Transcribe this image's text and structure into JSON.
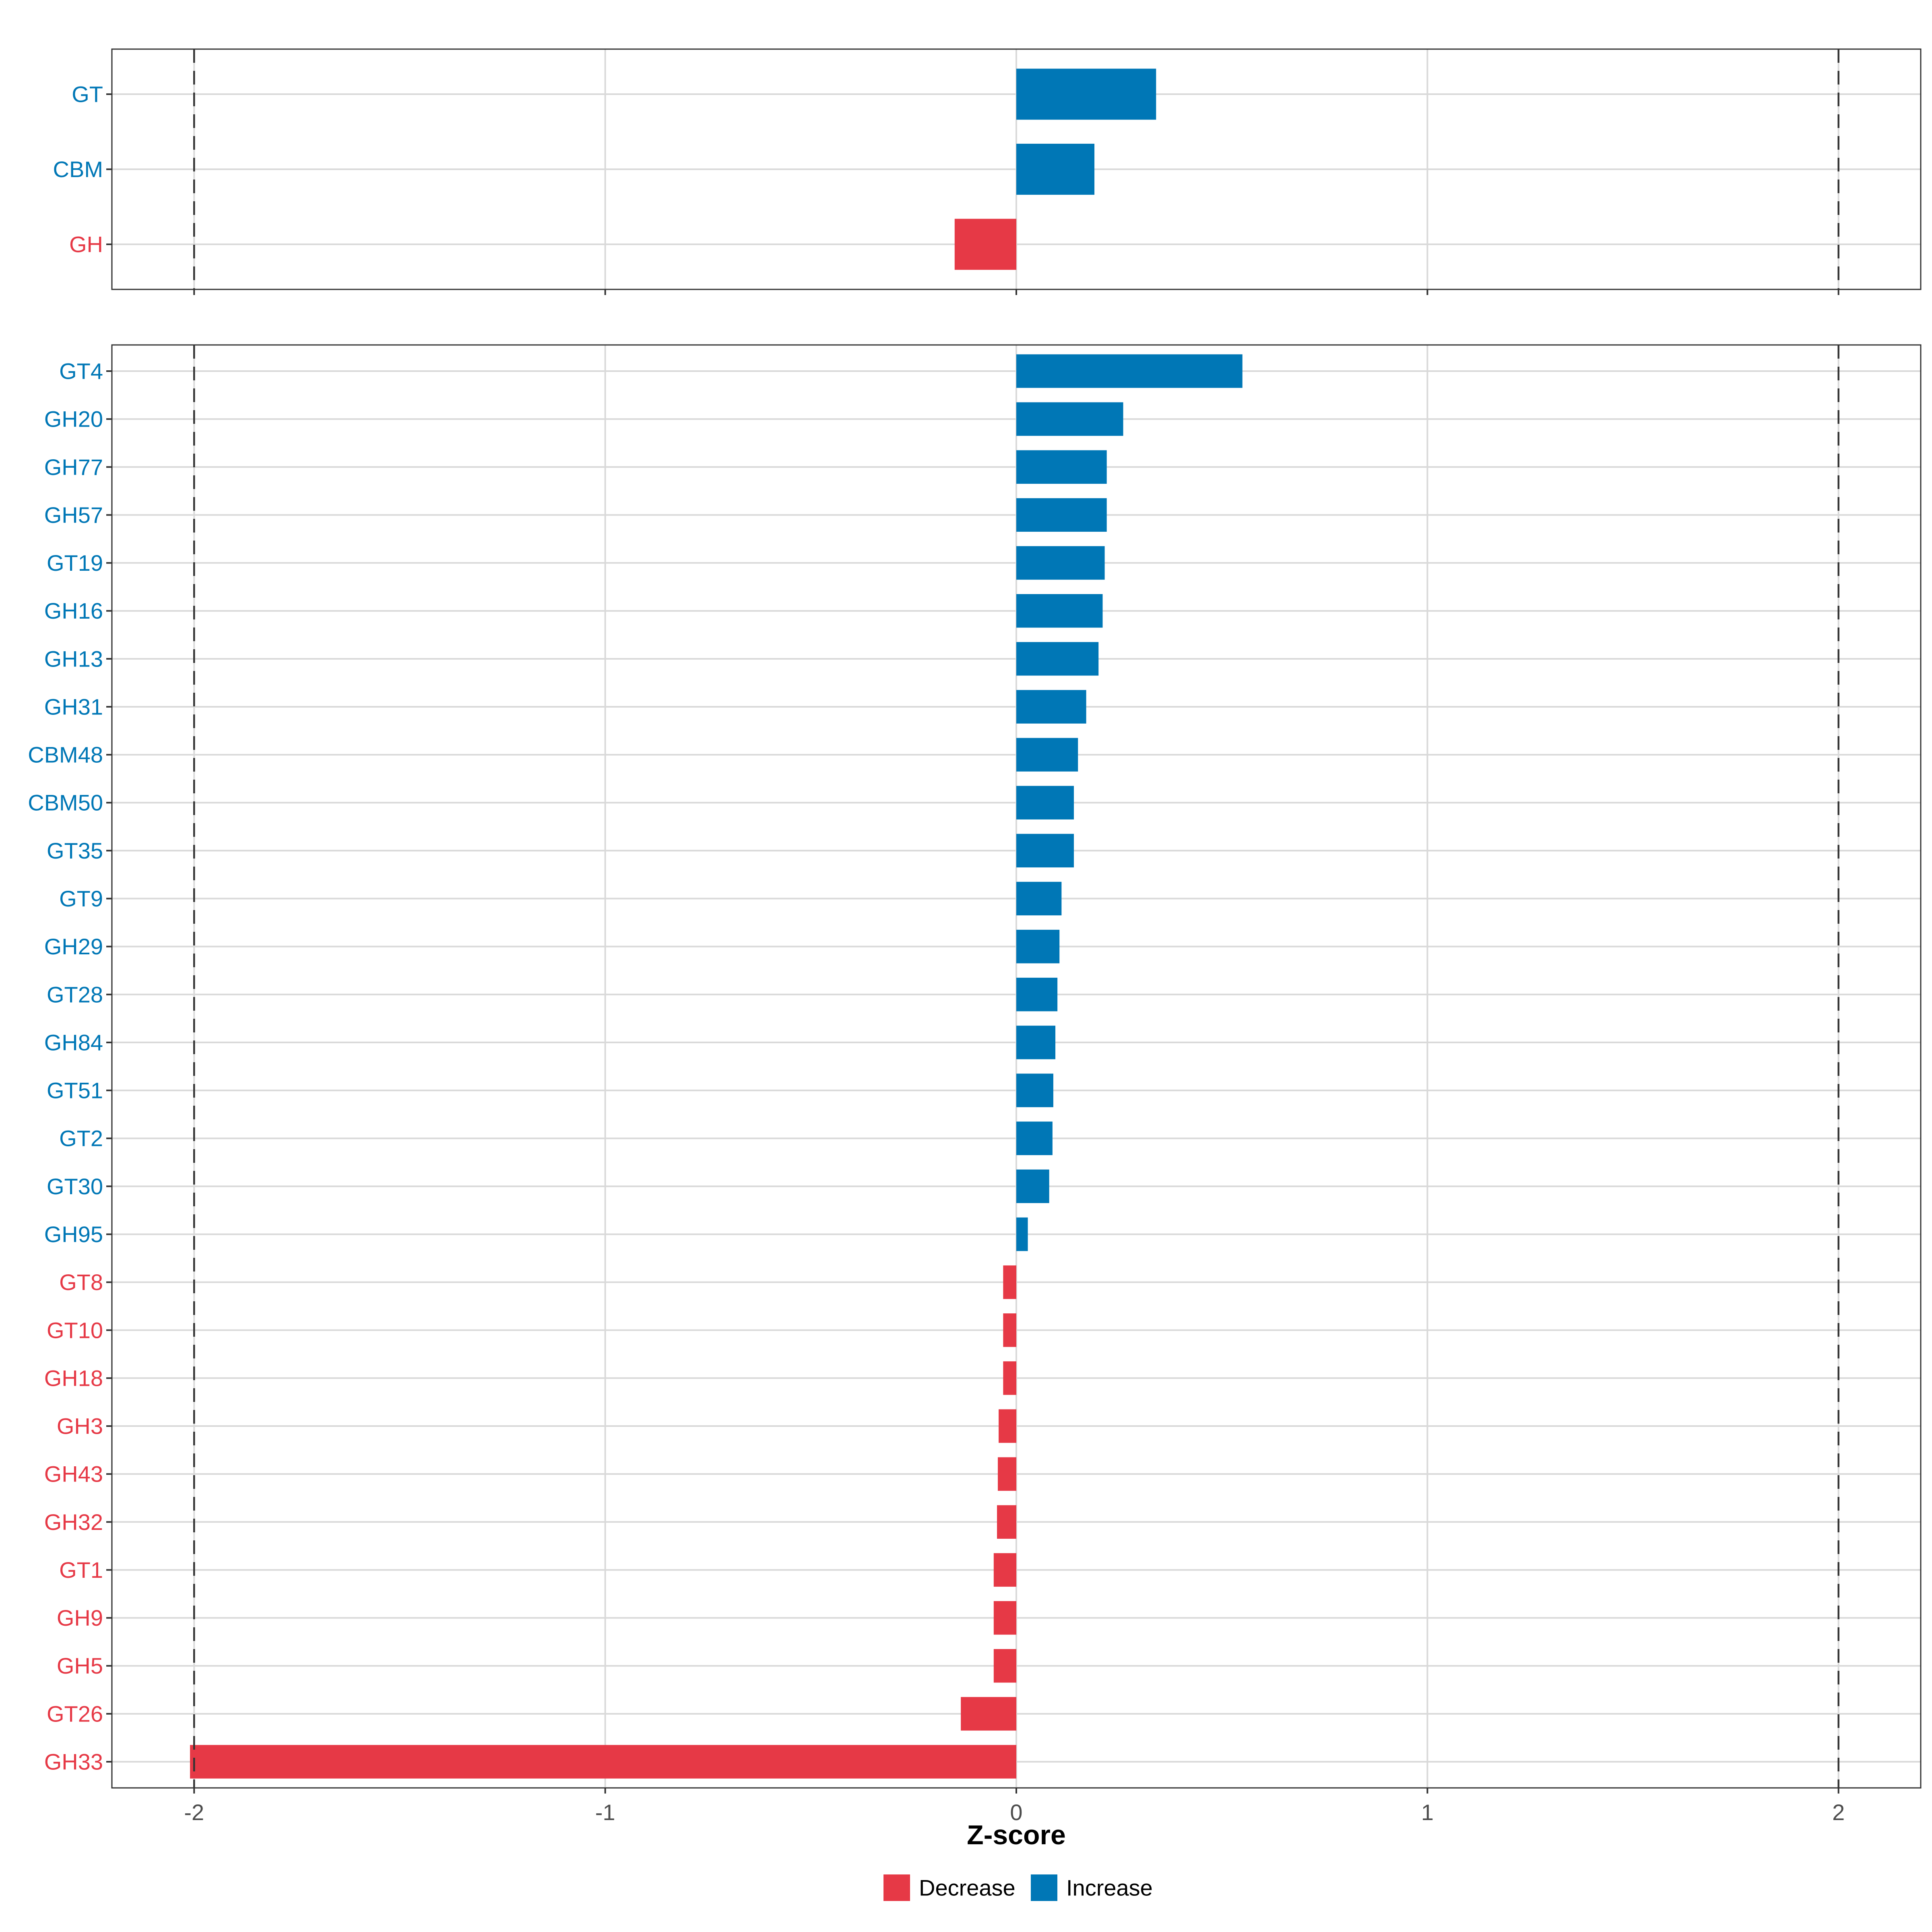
{
  "colors": {
    "decrease": "#E63946",
    "increase": "#0077B6"
  },
  "chart_data": {
    "type": "bar",
    "orientation": "horizontal",
    "xlabel": "Z-score",
    "xlim": [
      -2.2,
      2.2
    ],
    "x_ticks": [
      -2,
      -1,
      0,
      1,
      2
    ],
    "reference_lines": [
      -2,
      2
    ],
    "grid": true,
    "legend": {
      "position": "bottom",
      "entries": [
        {
          "label": "Decrease",
          "color_key": "decrease"
        },
        {
          "label": "Increase",
          "color_key": "increase"
        }
      ]
    },
    "panels": [
      {
        "name": "top",
        "categories": [
          "GT",
          "CBM",
          "GH"
        ],
        "values": [
          0.34,
          0.19,
          -0.15
        ]
      },
      {
        "name": "bottom",
        "categories": [
          "GT4",
          "GH20",
          "GH77",
          "GH57",
          "GT19",
          "GH16",
          "GH13",
          "GH31",
          "CBM48",
          "CBM50",
          "GT35",
          "GT9",
          "GH29",
          "GT28",
          "GH84",
          "GT51",
          "GT2",
          "GT30",
          "GH95",
          "GT8",
          "GT10",
          "GH18",
          "GH3",
          "GH43",
          "GH32",
          "GT1",
          "GH9",
          "GH5",
          "GT26",
          "GH33"
        ],
        "values": [
          0.55,
          0.26,
          0.22,
          0.22,
          0.215,
          0.21,
          0.2,
          0.17,
          0.15,
          0.14,
          0.14,
          0.11,
          0.105,
          0.1,
          0.095,
          0.09,
          0.088,
          0.08,
          0.028,
          -0.032,
          -0.032,
          -0.032,
          -0.043,
          -0.045,
          -0.047,
          -0.055,
          -0.055,
          -0.055,
          -0.135,
          -2.01
        ]
      }
    ]
  }
}
